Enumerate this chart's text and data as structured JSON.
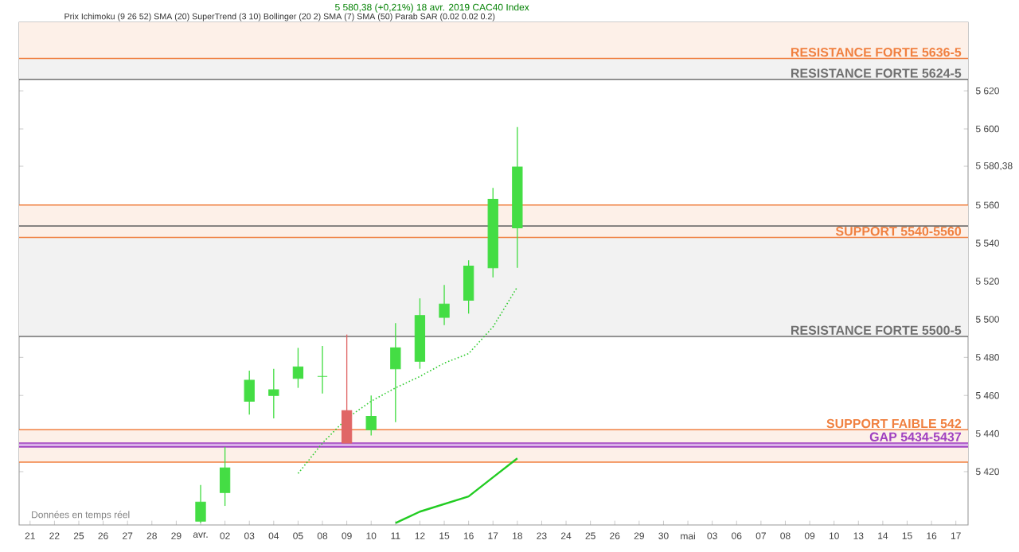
{
  "chart_data": {
    "type": "candlestick",
    "title": "5 580,38 (+0,21%) 18 avr. 2019 CAC40 Index",
    "subtitle": "Prix   Ichimoku (9 26 52)   SMA (20)   SuperTrend (3 10)   Bollinger (20 2)   SMA (7)   SMA (50)   Parab SAR (0.02 0.02 0.2)",
    "categories": [
      "21",
      "22",
      "25",
      "26",
      "27",
      "28",
      "29",
      "avr.",
      "02",
      "03",
      "04",
      "05",
      "08",
      "09",
      "10",
      "11",
      "12",
      "15",
      "16",
      "17",
      "18",
      "23",
      "24",
      "25",
      "26",
      "29",
      "30",
      "mai",
      "03",
      "06",
      "07",
      "08",
      "09",
      "10",
      "13",
      "14",
      "15",
      "16",
      "17"
    ],
    "ohlc": [
      null,
      null,
      null,
      null,
      null,
      null,
      null,
      [
        5394,
        5413,
        5393,
        5404
      ],
      [
        5409,
        5433,
        5402,
        5422
      ],
      [
        5457,
        5473,
        5450,
        5468
      ],
      [
        5460,
        5474,
        5448,
        5463
      ],
      [
        5469,
        5485,
        5464,
        5475
      ],
      [
        5470,
        5486,
        5461,
        5470
      ],
      [
        5452,
        5492,
        5435,
        5435
      ],
      [
        5442,
        5460,
        5439,
        5449
      ],
      [
        5474,
        5498,
        5446,
        5485
      ],
      [
        5478,
        5511,
        5474,
        5502
      ],
      [
        5501,
        5518,
        5497,
        5508
      ],
      [
        5510,
        5531,
        5503,
        5528
      ],
      [
        5527,
        5569,
        5522,
        5563
      ],
      [
        5548,
        5601,
        5527,
        5580
      ],
      null,
      null,
      null,
      null,
      null,
      null,
      null,
      null,
      null,
      null,
      null,
      null,
      null,
      null,
      null,
      null,
      null,
      null
    ],
    "colors": [
      null,
      null,
      null,
      null,
      null,
      null,
      null,
      "#44dd44",
      "#44dd44",
      "#44dd44",
      "#44dd44",
      "#44dd44",
      "#44dd44",
      "#e06666",
      "#44dd44",
      "#44dd44",
      "#44dd44",
      "#44dd44",
      "#44dd44",
      "#44dd44",
      "#44dd44",
      null,
      null,
      null,
      null,
      null,
      null,
      null,
      null,
      null,
      null,
      null,
      null,
      null,
      null,
      null,
      null,
      null,
      null
    ],
    "series": [
      {
        "type": "line",
        "color": "#33cc33",
        "line_style": "dotted",
        "values": [
          null,
          null,
          null,
          null,
          null,
          null,
          null,
          null,
          null,
          null,
          null,
          5419,
          5435,
          5448,
          5457,
          5464,
          5470,
          5477,
          5482,
          5496,
          5517,
          null,
          null,
          null,
          null,
          null,
          null,
          null,
          null,
          null,
          null,
          null,
          null,
          null,
          null,
          null,
          null,
          null,
          null
        ]
      },
      {
        "type": "line",
        "color": "#22cc22",
        "line_style": "solid",
        "values": [
          null,
          null,
          null,
          null,
          null,
          null,
          null,
          null,
          null,
          null,
          null,
          null,
          null,
          null,
          null,
          5393,
          5399,
          5403,
          5407,
          5417,
          5427,
          null,
          null,
          null,
          null,
          null,
          null,
          null,
          null,
          null,
          null,
          null,
          null,
          null,
          null,
          null,
          null,
          null,
          null
        ]
      }
    ],
    "ylim": [
      5392,
      5656
    ],
    "yticks": [
      {
        "value": 5420,
        "label": "5 420"
      },
      {
        "value": 5440,
        "label": "5 440"
      },
      {
        "value": 5460,
        "label": "5 460"
      },
      {
        "value": 5480,
        "label": "5 480"
      },
      {
        "value": 5500,
        "label": "5 500"
      },
      {
        "value": 5520,
        "label": "5 520"
      },
      {
        "value": 5540,
        "label": "5 540"
      },
      {
        "value": 5560,
        "label": "5 560"
      },
      {
        "value": 5580.38,
        "label": "5 580,38"
      },
      {
        "value": 5600,
        "label": "5 600"
      },
      {
        "value": 5620,
        "label": "5 620"
      }
    ],
    "bands": [
      {
        "axis": "y",
        "from": 5637,
        "to": 5656,
        "color": "#fdf0e8"
      },
      {
        "axis": "y",
        "from": 5626,
        "to": 5637,
        "color": "#f2f2f2"
      },
      {
        "axis": "y",
        "from": 5491,
        "to": 5549,
        "color": "#f2f2f2"
      },
      {
        "axis": "y",
        "from": 5543,
        "to": 5560,
        "color": "#fdf0e8"
      },
      {
        "axis": "y",
        "from": 5425,
        "to": 5442,
        "color": "#fdf0e8"
      },
      {
        "axis": "y",
        "from": 5433,
        "to": 5435,
        "color": "#d8b0e8"
      }
    ],
    "ref_lines": [
      {
        "axis": "y",
        "value": 5637,
        "color": "#f08040",
        "label": "RESISTANCE FORTE 5636-5"
      },
      {
        "axis": "y",
        "value": 5626,
        "color": "#707070",
        "label": "RESISTANCE FORTE 5624-5"
      },
      {
        "axis": "y",
        "value": 5549,
        "color": "#707070"
      },
      {
        "axis": "y",
        "value": 5491,
        "color": "#707070",
        "label": "RESISTANCE FORTE 5500-5"
      },
      {
        "axis": "y",
        "value": 5560,
        "color": "#f08040"
      },
      {
        "axis": "y",
        "value": 5543,
        "color": "#f08040",
        "label": "SUPPORT  5540-5560"
      },
      {
        "axis": "y",
        "value": 5442,
        "color": "#f08040",
        "label": "SUPPORT FAIBLE 542"
      },
      {
        "axis": "y",
        "value": 5425,
        "color": "#f08040"
      },
      {
        "axis": "y",
        "value": 5435,
        "color": "#a040c0",
        "label": "GAP 5434-5437"
      },
      {
        "axis": "y",
        "value": 5433,
        "color": "#a040c0"
      }
    ],
    "annotations": [
      "Données en temps réel"
    ]
  }
}
